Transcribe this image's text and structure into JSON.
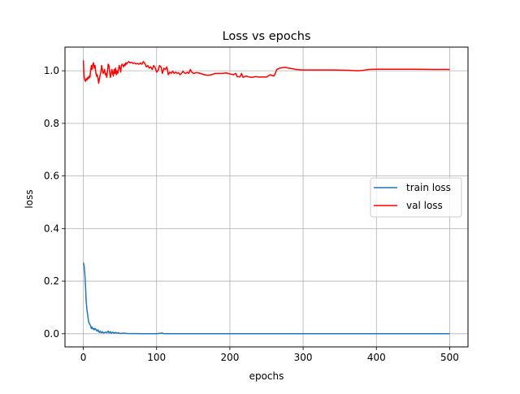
{
  "chart_data": {
    "type": "line",
    "title": "Loss vs epochs",
    "xlabel": "epochs",
    "ylabel": "loss",
    "xlim": [
      -25,
      525
    ],
    "ylim": [
      -0.05,
      1.09
    ],
    "xticks": [
      0,
      100,
      200,
      300,
      400,
      500
    ],
    "xtick_labels": [
      "0",
      "100",
      "200",
      "300",
      "400",
      "500"
    ],
    "yticks": [
      0.0,
      0.2,
      0.4,
      0.6,
      0.8,
      1.0
    ],
    "ytick_labels": [
      "0.0",
      "0.2",
      "0.4",
      "0.6",
      "0.8",
      "1.0"
    ],
    "grid": true,
    "legend_position": "center-right",
    "series": [
      {
        "name": "train loss",
        "color": "#1f77b4",
        "points": [
          [
            0,
            0.27
          ],
          [
            1,
            0.26
          ],
          [
            2,
            0.23
          ],
          [
            3,
            0.18
          ],
          [
            4,
            0.12
          ],
          [
            5,
            0.09
          ],
          [
            6,
            0.07
          ],
          [
            7,
            0.05
          ],
          [
            8,
            0.04
          ],
          [
            9,
            0.035
          ],
          [
            10,
            0.03
          ],
          [
            11,
            0.02
          ],
          [
            12,
            0.025
          ],
          [
            13,
            0.018
          ],
          [
            14,
            0.02
          ],
          [
            15,
            0.015
          ],
          [
            16,
            0.02
          ],
          [
            17,
            0.018
          ],
          [
            18,
            0.012
          ],
          [
            19,
            0.01
          ],
          [
            20,
            0.015
          ],
          [
            21,
            0.008
          ],
          [
            22,
            0.005
          ],
          [
            23,
            0.01
          ],
          [
            24,
            0.006
          ],
          [
            25,
            0.004
          ],
          [
            26,
            0.008
          ],
          [
            27,
            0.005
          ],
          [
            28,
            0.003
          ],
          [
            30,
            0.006
          ],
          [
            32,
            0.004
          ],
          [
            34,
            0.01
          ],
          [
            35,
            0.003
          ],
          [
            37,
            0.008
          ],
          [
            38,
            0.002
          ],
          [
            40,
            0.006
          ],
          [
            42,
            0.002
          ],
          [
            44,
            0.005
          ],
          [
            46,
            0.002
          ],
          [
            48,
            0.004
          ],
          [
            50,
            0.001
          ],
          [
            55,
            0.002
          ],
          [
            60,
            0.001
          ],
          [
            70,
            0.0005
          ],
          [
            80,
            0.0003
          ],
          [
            100,
            0.0003
          ],
          [
            108,
            0.0025
          ],
          [
            110,
            0.0002
          ],
          [
            150,
            0.0001
          ],
          [
            200,
            0.0001
          ],
          [
            300,
            0.0001
          ],
          [
            400,
            0.0001
          ],
          [
            500,
            0.0001
          ]
        ]
      },
      {
        "name": "val loss",
        "color": "#ff0000",
        "points": [
          [
            0,
            1.04
          ],
          [
            1,
            0.98
          ],
          [
            2,
            0.965
          ],
          [
            3,
            0.96
          ],
          [
            4,
            0.97
          ],
          [
            5,
            0.965
          ],
          [
            6,
            0.975
          ],
          [
            7,
            0.97
          ],
          [
            8,
            0.98
          ],
          [
            9,
            0.975
          ],
          [
            10,
            1.0
          ],
          [
            11,
            1.02
          ],
          [
            12,
            1.005
          ],
          [
            13,
            1.025
          ],
          [
            14,
            1.03
          ],
          [
            15,
            1.01
          ],
          [
            16,
            1.02
          ],
          [
            17,
            0.995
          ],
          [
            18,
            0.98
          ],
          [
            19,
            0.985
          ],
          [
            20,
            0.97
          ],
          [
            21,
            0.953
          ],
          [
            22,
            0.97
          ],
          [
            23,
            0.985
          ],
          [
            24,
            0.995
          ],
          [
            25,
            1.02
          ],
          [
            26,
            1.005
          ],
          [
            27,
            0.99
          ],
          [
            28,
            0.995
          ],
          [
            29,
            1.005
          ],
          [
            30,
            0.985
          ],
          [
            31,
            0.99
          ],
          [
            32,
            0.975
          ],
          [
            33,
            1.0
          ],
          [
            34,
            1.025
          ],
          [
            35,
            1.02
          ],
          [
            36,
            0.995
          ],
          [
            37,
            0.975
          ],
          [
            38,
            0.99
          ],
          [
            39,
            1.005
          ],
          [
            40,
            0.99
          ],
          [
            41,
            0.98
          ],
          [
            42,
            1.005
          ],
          [
            43,
            0.99
          ],
          [
            44,
            1.01
          ],
          [
            45,
            0.985
          ],
          [
            46,
            1.0
          ],
          [
            47,
            0.99
          ],
          [
            48,
            1.005
          ],
          [
            49,
            1.02
          ],
          [
            50,
            1.01
          ],
          [
            51,
            0.995
          ],
          [
            52,
            1.02
          ],
          [
            53,
            1.025
          ],
          [
            54,
            1.02
          ],
          [
            55,
            1.015
          ],
          [
            56,
            1.025
          ],
          [
            57,
            1.02
          ],
          [
            58,
            1.03
          ],
          [
            59,
            1.025
          ],
          [
            60,
            1.03
          ],
          [
            62,
            1.035
          ],
          [
            64,
            1.03
          ],
          [
            66,
            1.032
          ],
          [
            68,
            1.028
          ],
          [
            70,
            1.03
          ],
          [
            72,
            1.026
          ],
          [
            74,
            1.028
          ],
          [
            76,
            1.025
          ],
          [
            78,
            1.03
          ],
          [
            80,
            1.025
          ],
          [
            82,
            1.035
          ],
          [
            84,
            1.028
          ],
          [
            86,
            1.015
          ],
          [
            88,
            1.02
          ],
          [
            90,
            1.01
          ],
          [
            92,
            1.015
          ],
          [
            94,
            1.005
          ],
          [
            96,
            1.02
          ],
          [
            98,
            1.012
          ],
          [
            100,
            0.995
          ],
          [
            102,
            1.0
          ],
          [
            104,
            1.02
          ],
          [
            106,
            1.015
          ],
          [
            108,
            0.99
          ],
          [
            110,
            1.01
          ],
          [
            112,
            1.005
          ],
          [
            114,
            1.015
          ],
          [
            116,
            0.985
          ],
          [
            118,
            0.995
          ],
          [
            120,
            0.99
          ],
          [
            122,
            0.998
          ],
          [
            124,
            0.99
          ],
          [
            126,
            0.995
          ],
          [
            128,
            0.99
          ],
          [
            130,
            0.993
          ],
          [
            132,
            0.985
          ],
          [
            134,
            0.99
          ],
          [
            136,
            0.998
          ],
          [
            138,
            0.992
          ],
          [
            140,
            0.99
          ],
          [
            142,
            0.995
          ],
          [
            144,
            0.99
          ],
          [
            146,
            1.005
          ],
          [
            148,
            0.995
          ],
          [
            150,
            0.99
          ],
          [
            155,
            0.993
          ],
          [
            160,
            0.99
          ],
          [
            165,
            0.985
          ],
          [
            170,
            0.983
          ],
          [
            175,
            0.985
          ],
          [
            180,
            0.99
          ],
          [
            185,
            0.99
          ],
          [
            190,
            0.99
          ],
          [
            195,
            0.992
          ],
          [
            200,
            0.988
          ],
          [
            205,
            0.985
          ],
          [
            208,
            0.99
          ],
          [
            210,
            0.978
          ],
          [
            214,
            0.977
          ],
          [
            216,
            0.99
          ],
          [
            218,
            0.975
          ],
          [
            222,
            0.98
          ],
          [
            226,
            0.977
          ],
          [
            230,
            0.975
          ],
          [
            235,
            0.978
          ],
          [
            240,
            0.976
          ],
          [
            245,
            0.977
          ],
          [
            250,
            0.976
          ],
          [
            255,
            0.985
          ],
          [
            260,
            0.98
          ],
          [
            262,
            0.99
          ],
          [
            264,
            1.005
          ],
          [
            268,
            1.01
          ],
          [
            272,
            1.012
          ],
          [
            276,
            1.013
          ],
          [
            280,
            1.01
          ],
          [
            285,
            1.008
          ],
          [
            290,
            1.005
          ],
          [
            295,
            1.004
          ],
          [
            300,
            1.003
          ],
          [
            310,
            1.003
          ],
          [
            320,
            1.003
          ],
          [
            340,
            1.003
          ],
          [
            360,
            1.002
          ],
          [
            375,
            1.0
          ],
          [
            380,
            1.001
          ],
          [
            390,
            1.005
          ],
          [
            400,
            1.006
          ],
          [
            420,
            1.006
          ],
          [
            450,
            1.006
          ],
          [
            480,
            1.005
          ],
          [
            500,
            1.005
          ]
        ]
      }
    ]
  }
}
